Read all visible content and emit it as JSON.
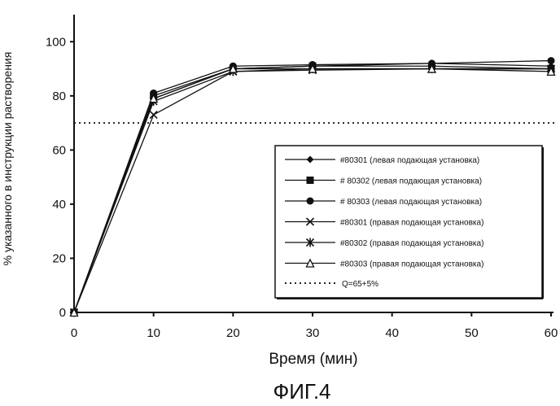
{
  "chart_data": {
    "type": "line",
    "x": [
      0,
      10,
      20,
      30,
      45,
      60
    ],
    "xticks": [
      "0",
      "10",
      "20",
      "30",
      "40",
      "50",
      "60"
    ],
    "yticks": [
      "0",
      "20",
      "40",
      "60",
      "80",
      "100"
    ],
    "xlim": [
      0,
      60
    ],
    "ylim": [
      0,
      110
    ],
    "xlabel": "Время (мин)",
    "ylabel": "% указанного в инструкции растворения",
    "caption": "ФИГ.4",
    "legend_position": "right-middle",
    "series": [
      {
        "name": "#80301 (левая подающая установка)",
        "marker": "diamond",
        "values": [
          0,
          79,
          90,
          91,
          92,
          91
        ]
      },
      {
        "name": "# 80302 (левая подающая установка)",
        "marker": "square",
        "values": [
          0,
          80,
          90,
          91,
          91,
          90
        ]
      },
      {
        "name": "# 80303 (левая подающая установка)",
        "marker": "circle",
        "values": [
          0,
          81,
          91,
          91.5,
          92,
          93
        ]
      },
      {
        "name": "#80301 (правая подающая установка)",
        "marker": "x",
        "values": [
          0,
          73,
          89,
          89.5,
          90,
          90
        ]
      },
      {
        "name": "#80302 (правая подающая установка)",
        "marker": "asterisk",
        "values": [
          0,
          78,
          89,
          90,
          90,
          90
        ]
      },
      {
        "name": "#80303 (правая подающая установка)",
        "marker": "triangle",
        "values": [
          0,
          79,
          90,
          90,
          90,
          89
        ]
      }
    ],
    "reference_line": {
      "name": "Q=65+5%",
      "value": 70,
      "style": "dotted"
    }
  }
}
